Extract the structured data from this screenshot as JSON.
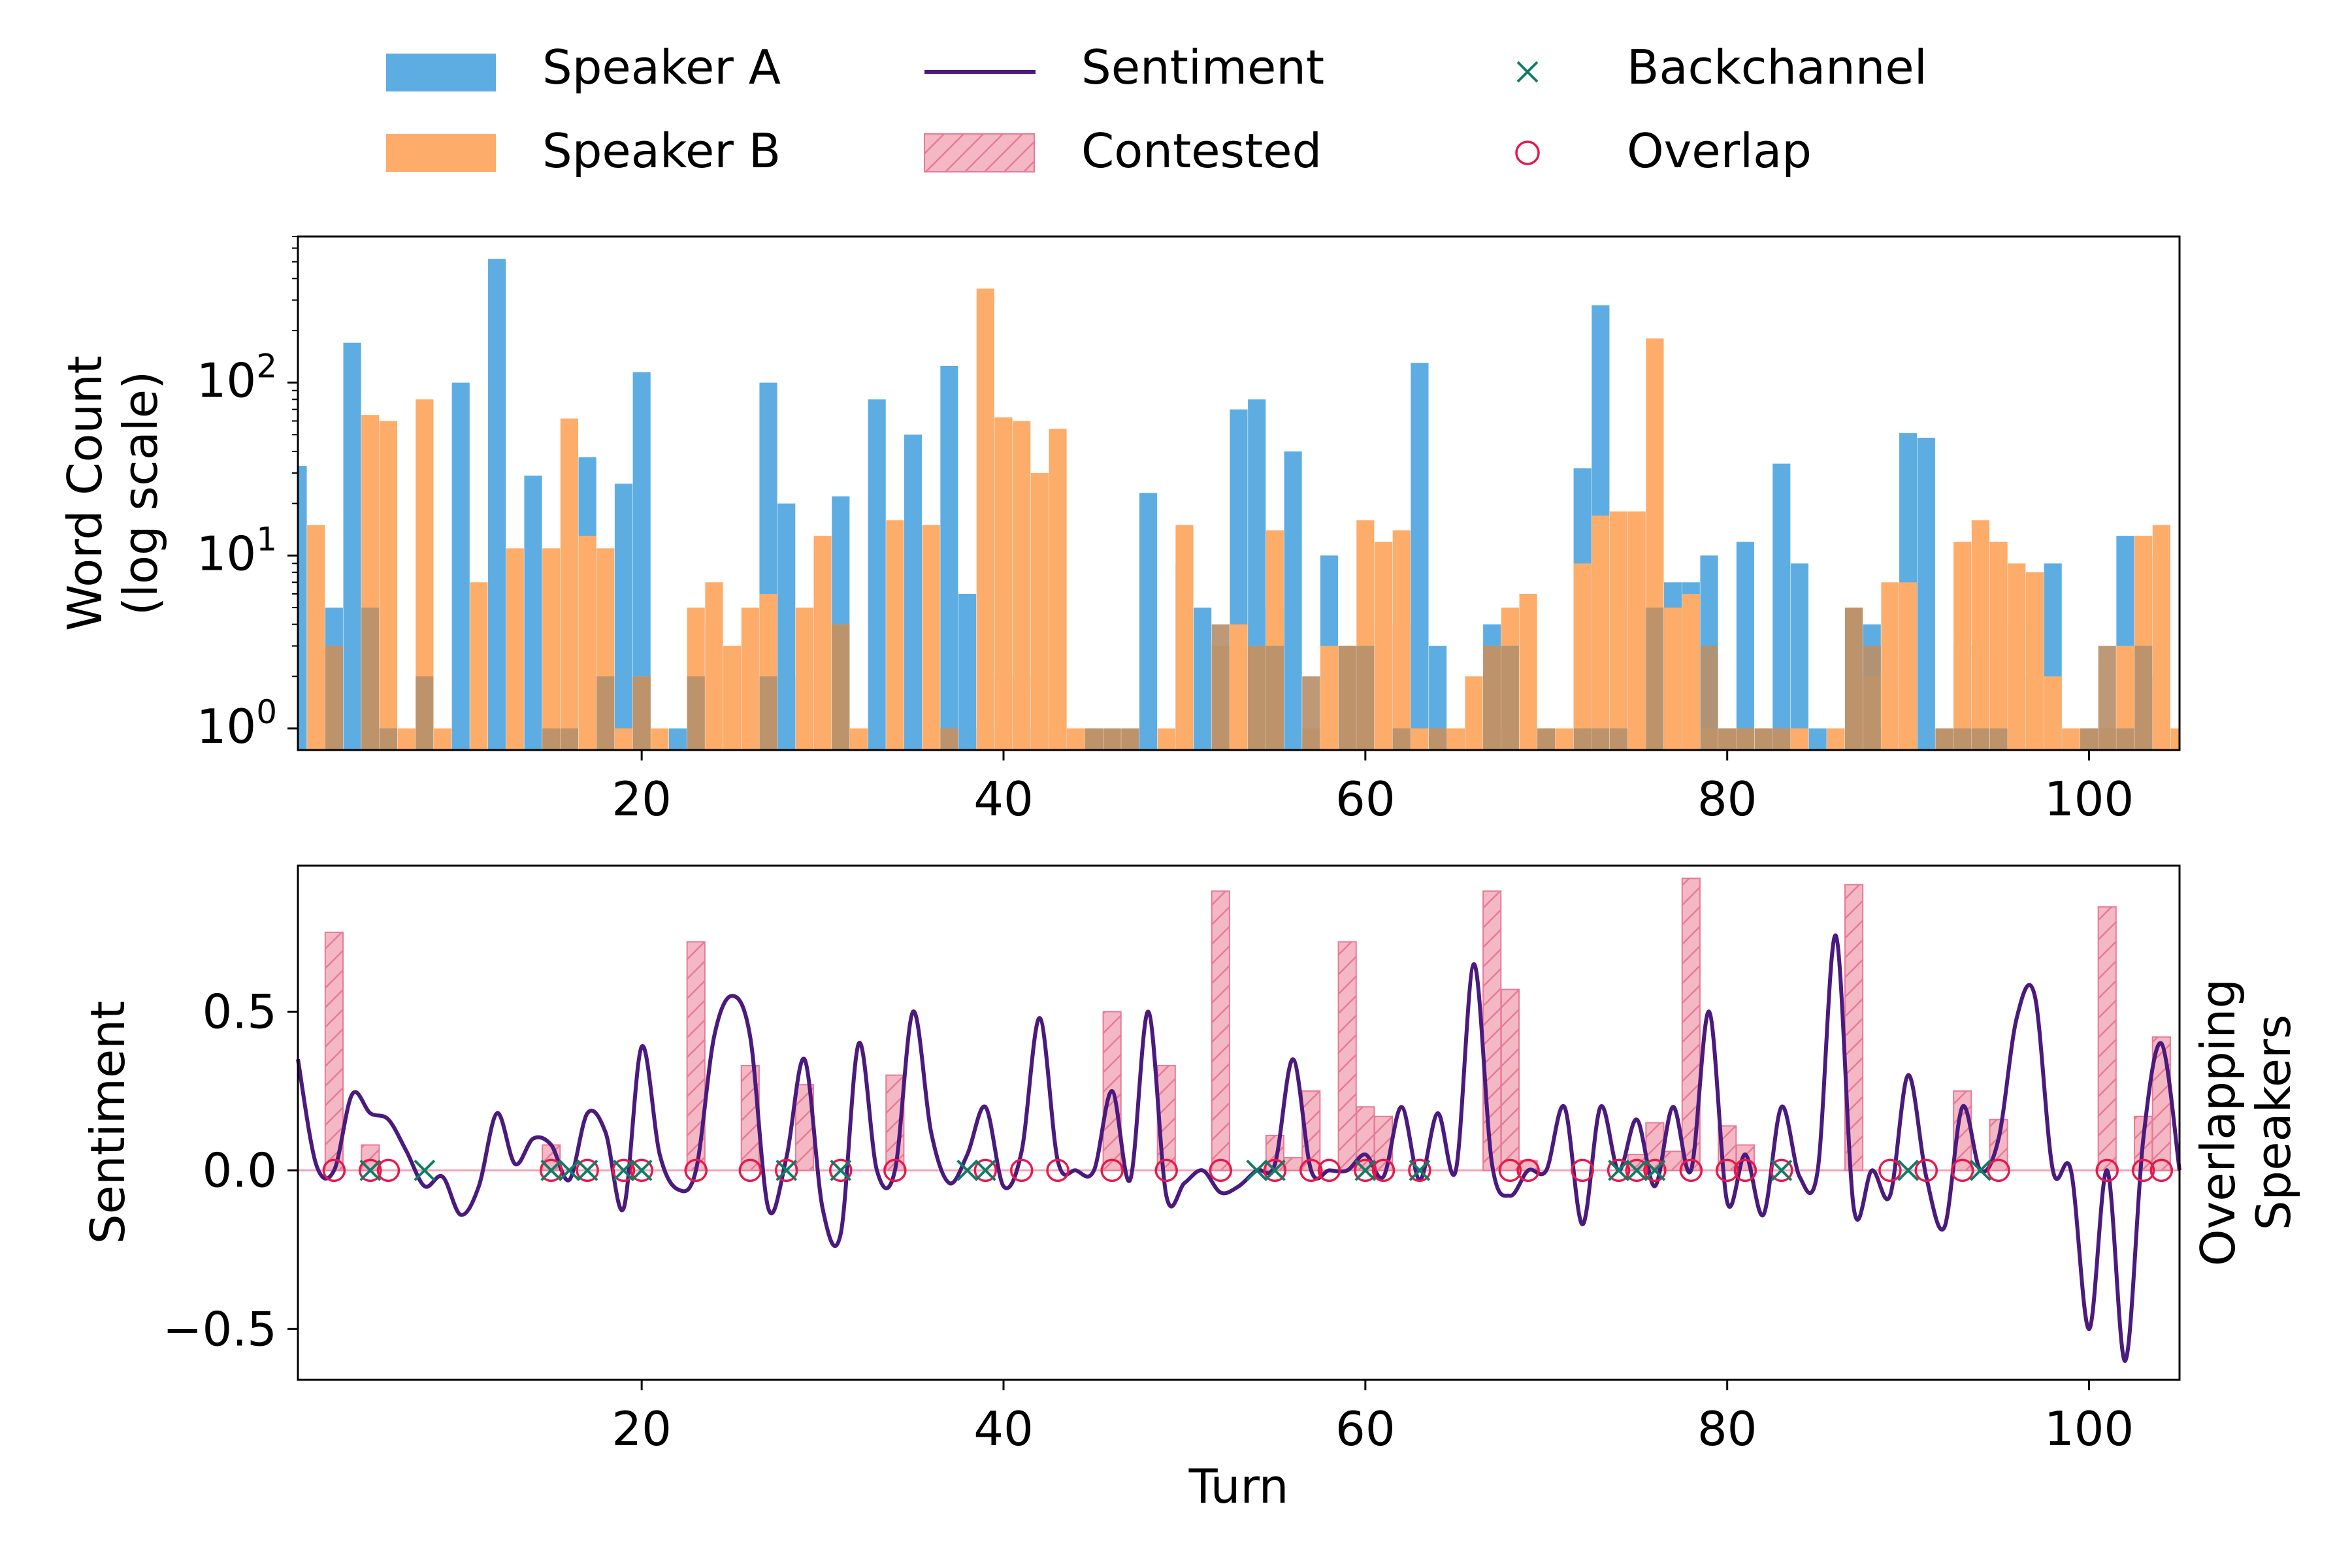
{
  "colors": {
    "speaker_a": "#5dade2",
    "speaker_b": "#fdac6a",
    "overlap_bar": "#b7906b",
    "sentiment": "#4a1a7e",
    "contested_fill": "#f4b8c4",
    "contested_edge": "#e77a96",
    "backchannel": "#0f7d66",
    "overlap_marker": "#e6194b",
    "zero_line": "#f4a0b4"
  },
  "legend": {
    "speaker_a": "Speaker A",
    "speaker_b": "Speaker B",
    "sentiment": "Sentiment",
    "contested": "Contested",
    "backchannel": "Backchannel",
    "overlap": "Overlap"
  },
  "chart_data": [
    {
      "type": "bar",
      "ylabel": "Word Count\n(log scale)",
      "yscale": "log",
      "xlim": [
        1,
        105
      ],
      "ylim": [
        0.75,
        700
      ],
      "xticks": [
        "20",
        "40",
        "60",
        "80",
        "100"
      ],
      "yticks": [
        "10^0",
        "10^1",
        "10^2"
      ],
      "series": [
        {
          "name": "Speaker A",
          "turns": [
            1,
            3,
            4,
            6,
            8,
            10,
            12,
            14,
            17,
            19,
            20,
            22,
            24,
            27,
            28,
            29,
            31,
            33,
            35,
            37,
            38,
            39,
            40,
            41,
            42,
            43,
            44,
            45,
            48,
            50,
            51,
            53,
            54,
            55,
            56,
            58,
            59,
            60,
            61,
            62,
            63,
            64,
            65,
            66,
            67,
            68,
            69,
            70,
            72,
            73,
            75,
            76,
            77,
            78,
            79,
            80,
            81,
            82,
            83,
            84,
            85,
            86,
            87,
            88,
            89,
            90,
            91,
            93,
            96,
            97,
            98,
            99,
            100,
            101,
            102,
            103,
            104
          ],
          "values": [
            33,
            5,
            170,
            1,
            1,
            100,
            520,
            29,
            37,
            26,
            115,
            1,
            4,
            100,
            20,
            2,
            22,
            80,
            50,
            125,
            6,
            1,
            2,
            2,
            1,
            1,
            1,
            1,
            23,
            9,
            5,
            70,
            80,
            5,
            40,
            10,
            3,
            3,
            4,
            4,
            130,
            3,
            1,
            1,
            4,
            1,
            1,
            1,
            32,
            280,
            5,
            5,
            7,
            7,
            10,
            1,
            12,
            1,
            34,
            9,
            1,
            1,
            2,
            4,
            1,
            51,
            48,
            3,
            4,
            2,
            9,
            1,
            1,
            1,
            13,
            2,
            10
          ]
        },
        {
          "name": "Speaker B",
          "turns": [
            2,
            3,
            5,
            6,
            7,
            8,
            9,
            11,
            13,
            15,
            16,
            17,
            18,
            19,
            20,
            21,
            23,
            24,
            25,
            26,
            27,
            29,
            30,
            31,
            32,
            34,
            36,
            37,
            39,
            40,
            41,
            42,
            43,
            44,
            45,
            46,
            47,
            49,
            50,
            52,
            53,
            54,
            55,
            57,
            58,
            59,
            60,
            61,
            62,
            63,
            64,
            65,
            66,
            67,
            68,
            69,
            70,
            71,
            72,
            73,
            74,
            75,
            76,
            77,
            78,
            79,
            80,
            81,
            82,
            83,
            84,
            86,
            87,
            88,
            89,
            90,
            92,
            93,
            94,
            95,
            96,
            97,
            98,
            99,
            100,
            101,
            102,
            103,
            104,
            105
          ],
          "values": [
            15,
            3,
            65,
            60,
            1,
            80,
            1,
            7,
            11,
            11,
            62,
            13,
            11,
            1,
            2,
            1,
            5,
            7,
            3,
            5,
            6,
            5,
            13,
            4,
            1,
            16,
            15,
            1,
            350,
            63,
            60,
            30,
            54,
            1,
            1,
            1,
            1,
            1,
            15,
            3,
            4,
            3,
            14,
            1,
            3,
            3,
            16,
            12,
            14,
            1,
            1,
            1,
            2,
            3,
            5,
            6,
            1,
            1,
            9,
            17,
            18,
            18,
            180,
            5,
            6,
            1,
            1,
            1,
            1,
            1,
            1,
            1,
            5,
            2,
            7,
            7,
            1,
            12,
            16,
            12,
            9,
            8,
            2,
            1,
            1,
            1,
            3,
            13,
            15,
            1
          ]
        },
        {
          "name": "",
          "turns": [
            3,
            5,
            6,
            8,
            15,
            16,
            18,
            20,
            23,
            27,
            31,
            37,
            45,
            46,
            47,
            52,
            54,
            55,
            57,
            59,
            60,
            62,
            64,
            67,
            68,
            70,
            72,
            73,
            74,
            76,
            79,
            80,
            81,
            82,
            83,
            87,
            88,
            92,
            93,
            94,
            95,
            100,
            101,
            102,
            103
          ],
          "values": [
            3,
            5,
            1,
            2,
            1,
            1,
            2,
            2,
            2,
            2,
            4,
            1,
            1,
            1,
            1,
            4,
            3,
            3,
            2,
            3,
            3,
            1,
            1,
            3,
            3,
            1,
            1,
            1,
            1,
            5,
            3,
            1,
            1,
            1,
            1,
            5,
            3,
            1,
            1,
            1,
            1,
            1,
            3,
            1,
            3
          ]
        }
      ]
    },
    {
      "type": "line",
      "xlabel": "Turn",
      "ylabel": "Sentiment",
      "y2label": "Overlapping\nSpeakers",
      "xlim": [
        1,
        105
      ],
      "ylim": [
        -0.66,
        0.96
      ],
      "xticks": [
        "20",
        "40",
        "60",
        "80",
        "100"
      ],
      "yticks": [
        "−0.5",
        "0.0",
        "0.5"
      ],
      "sentiment_x": [
        1,
        2,
        3,
        4,
        5,
        6,
        7,
        8,
        9,
        10,
        11,
        12,
        13,
        14,
        15,
        16,
        17,
        18,
        19,
        20,
        21,
        22,
        23,
        24,
        25,
        26,
        27,
        28,
        29,
        30,
        31,
        32,
        33,
        34,
        35,
        36,
        37,
        38,
        39,
        40,
        41,
        42,
        43,
        44,
        45,
        46,
        47,
        48,
        49,
        50,
        51,
        52,
        53,
        54,
        55,
        56,
        57,
        58,
        59,
        60,
        61,
        62,
        63,
        64,
        65,
        66,
        67,
        68,
        69,
        70,
        71,
        72,
        73,
        74,
        75,
        76,
        77,
        78,
        79,
        80,
        81,
        82,
        83,
        84,
        85,
        86,
        87,
        88,
        89,
        90,
        91,
        92,
        93,
        94,
        95,
        96,
        97,
        98,
        99,
        100,
        101,
        102,
        103,
        104,
        105
      ],
      "sentiment_y": [
        0.35,
        0.02,
        0.0,
        0.24,
        0.18,
        0.16,
        0.06,
        -0.05,
        -0.02,
        -0.14,
        -0.05,
        0.18,
        0.02,
        0.1,
        0.08,
        -0.03,
        0.18,
        0.12,
        -0.12,
        0.39,
        0.05,
        -0.06,
        0.0,
        0.42,
        0.55,
        0.42,
        -0.12,
        0.04,
        0.35,
        -0.12,
        -0.2,
        0.4,
        0.0,
        0.0,
        0.5,
        0.12,
        -0.04,
        0.05,
        0.2,
        -0.05,
        0.06,
        0.48,
        0.03,
        0.0,
        0.0,
        0.25,
        -0.03,
        0.5,
        -0.08,
        -0.04,
        0.0,
        -0.07,
        -0.05,
        0.0,
        0.02,
        0.35,
        0.0,
        0.0,
        0.0,
        0.05,
        -0.02,
        0.2,
        -0.03,
        0.18,
        0.0,
        0.65,
        0.02,
        -0.08,
        0.0,
        0.0,
        0.2,
        -0.17,
        0.2,
        0.0,
        0.16,
        -0.05,
        0.2,
        0.0,
        0.5,
        -0.1,
        0.05,
        -0.14,
        0.2,
        -0.02,
        0.0,
        0.74,
        -0.12,
        0.0,
        -0.08,
        0.3,
        -0.02,
        -0.18,
        0.2,
        0.0,
        0.1,
        0.48,
        0.55,
        0.0,
        0.0,
        -0.5,
        0.0,
        -0.6,
        0.1,
        0.4,
        0.0
      ],
      "contested_turns": [
        3,
        5,
        15,
        23,
        26,
        29,
        34,
        46,
        49,
        52,
        55,
        56,
        57,
        59,
        60,
        61,
        67,
        68,
        69,
        75,
        76,
        77,
        78,
        80,
        81,
        87,
        93,
        95,
        101,
        103,
        104
      ],
      "contested_values": [
        0.75,
        0.08,
        0.08,
        0.72,
        0.33,
        0.27,
        0.3,
        0.5,
        0.33,
        0.88,
        0.11,
        0.04,
        0.25,
        0.72,
        0.2,
        0.17,
        0.88,
        0.57,
        0.03,
        0.05,
        0.15,
        0.06,
        0.92,
        0.14,
        0.08,
        0.9,
        0.25,
        0.16,
        0.83,
        0.17,
        0.42
      ],
      "overlap_turns": [
        3,
        5,
        6,
        15,
        17,
        19,
        20,
        23,
        26,
        28,
        31,
        34,
        39,
        41,
        43,
        46,
        49,
        52,
        55,
        57,
        58,
        60,
        61,
        63,
        68,
        69,
        72,
        74,
        75,
        76,
        78,
        80,
        81,
        83,
        89,
        91,
        93,
        95,
        101,
        103,
        104
      ],
      "backchannel_turns": [
        5,
        8,
        15,
        16,
        17,
        19,
        20,
        28,
        31,
        38,
        39,
        54,
        55,
        60,
        63,
        74,
        75,
        76,
        83,
        90,
        94
      ]
    }
  ]
}
